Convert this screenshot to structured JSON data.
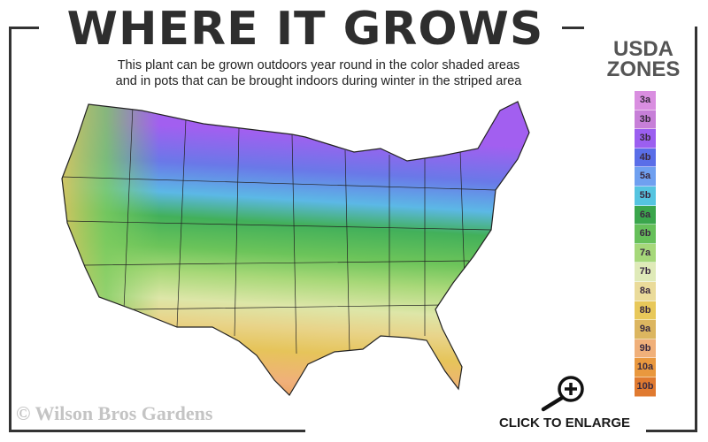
{
  "header": {
    "title": "WHERE IT GROWS",
    "subtitle_line1": "This plant can be grown outdoors year round in the color shaded areas",
    "subtitle_line2": "and in pots that can be brought indoors during winter in the striped area"
  },
  "legend": {
    "title_line1": "USDA",
    "title_line2": "ZONES",
    "zones": [
      {
        "label": "3a",
        "color": "#d98ee0"
      },
      {
        "label": "3b",
        "color": "#c77fd8"
      },
      {
        "label": "3b",
        "color": "#9b5ff0"
      },
      {
        "label": "4b",
        "color": "#5a6ee8"
      },
      {
        "label": "5a",
        "color": "#6fa0f0"
      },
      {
        "label": "5b",
        "color": "#55c4e0"
      },
      {
        "label": "6a",
        "color": "#3aa64c"
      },
      {
        "label": "6b",
        "color": "#66c05a"
      },
      {
        "label": "7a",
        "color": "#a6d87a"
      },
      {
        "label": "7b",
        "color": "#dfeab8"
      },
      {
        "label": "8a",
        "color": "#eadb9a"
      },
      {
        "label": "8b",
        "color": "#e8c85a"
      },
      {
        "label": "9a",
        "color": "#dcb660"
      },
      {
        "label": "9b",
        "color": "#f0b07a"
      },
      {
        "label": "10a",
        "color": "#e9983e"
      },
      {
        "label": "10b",
        "color": "#e07a30"
      }
    ]
  },
  "footer": {
    "copyright": "© Wilson Bros Gardens",
    "enlarge_label": "CLICK TO ENLARGE",
    "enlarge_icon": "zoom-in-icon"
  }
}
